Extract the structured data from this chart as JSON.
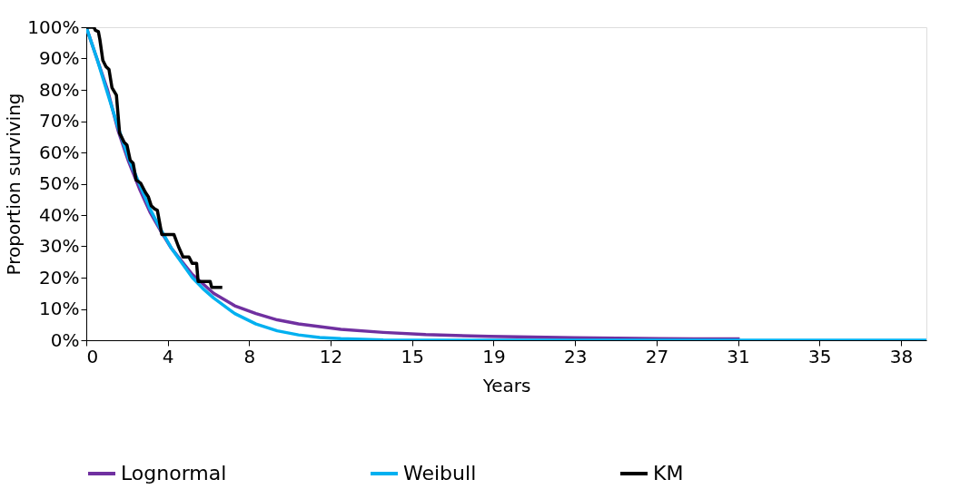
{
  "chart_data": {
    "type": "line",
    "xlabel": "Years",
    "ylabel": "Proportion surviving",
    "xlim": [
      0,
      39.6
    ],
    "ylim": [
      0,
      100
    ],
    "xticks": [
      0,
      {
        "value": 3.84,
        "label": "4"
      },
      {
        "value": 7.68,
        "label": "8"
      },
      {
        "value": 11.52,
        "label": "12"
      },
      {
        "value": 15.36,
        "label": "15"
      },
      {
        "value": 19.2,
        "label": "19"
      },
      {
        "value": 23.04,
        "label": "23"
      },
      {
        "value": 26.88,
        "label": "27"
      },
      {
        "value": 30.72,
        "label": "31"
      },
      {
        "value": 34.56,
        "label": "35"
      },
      {
        "value": 38.4,
        "label": "38"
      }
    ],
    "yticks": [
      {
        "value": 0,
        "label": "0%"
      },
      {
        "value": 10,
        "label": "10%"
      },
      {
        "value": 20,
        "label": "20%"
      },
      {
        "value": 30,
        "label": "30%"
      },
      {
        "value": 40,
        "label": "40%"
      },
      {
        "value": 50,
        "label": "50%"
      },
      {
        "value": 60,
        "label": "60%"
      },
      {
        "value": 70,
        "label": "70%"
      },
      {
        "value": 80,
        "label": "80%"
      },
      {
        "value": 90,
        "label": "90%"
      },
      {
        "value": 100,
        "label": "100%"
      }
    ],
    "grid": false,
    "legend": "bottom",
    "marker": "none",
    "line_style": "solid",
    "series": [
      {
        "name": "Lognormal",
        "color": "#7030a0",
        "x": [
          0,
          0.5,
          1,
          1.5,
          2,
          2.5,
          3,
          3.5,
          4,
          5,
          6,
          7,
          8,
          9,
          10,
          12,
          14,
          16,
          19,
          23,
          27,
          30.8
        ],
        "values": [
          100,
          90,
          80,
          67,
          57,
          48.5,
          41,
          35,
          29.5,
          21,
          15,
          11,
          8.5,
          6.5,
          5.2,
          3.5,
          2.5,
          1.8,
          1.2,
          0.8,
          0.5,
          0.4
        ]
      },
      {
        "name": "Weibull",
        "color": "#00b0f0",
        "x": [
          0,
          0.5,
          1,
          1.5,
          2,
          2.5,
          3,
          3.5,
          4,
          5,
          5.5,
          6,
          7,
          8,
          9,
          10,
          11,
          12,
          14,
          16,
          39.6
        ],
        "values": [
          100,
          90,
          79,
          68,
          58,
          50,
          42,
          35.5,
          29.5,
          20,
          16.5,
          13.5,
          8.5,
          5.2,
          3,
          1.7,
          0.9,
          0.5,
          0.1,
          0,
          0
        ]
      },
      {
        "name": "KM",
        "color": "#000000",
        "x": [
          0,
          0.36,
          0.43,
          0.57,
          0.64,
          0.78,
          0.93,
          1.07,
          1.21,
          1.42,
          1.57,
          1.78,
          1.92,
          2.07,
          2.21,
          2.35,
          2.56,
          2.78,
          2.92,
          3.06,
          3.21,
          3.35,
          3.56,
          4.13,
          4.34,
          4.56,
          4.84,
          4.99,
          5.2,
          5.27,
          5.84,
          5.91,
          6.41
        ],
        "values": [
          100,
          100,
          99,
          98.6,
          96.1,
          89.4,
          87.4,
          86.5,
          80.7,
          78.3,
          66.2,
          63.3,
          62.3,
          57.5,
          56.5,
          51.2,
          50.2,
          47.3,
          45.9,
          43,
          42,
          41.5,
          33.8,
          33.8,
          30,
          26.6,
          26.6,
          24.6,
          24.6,
          18.8,
          18.8,
          16.9,
          16.9
        ]
      }
    ]
  }
}
